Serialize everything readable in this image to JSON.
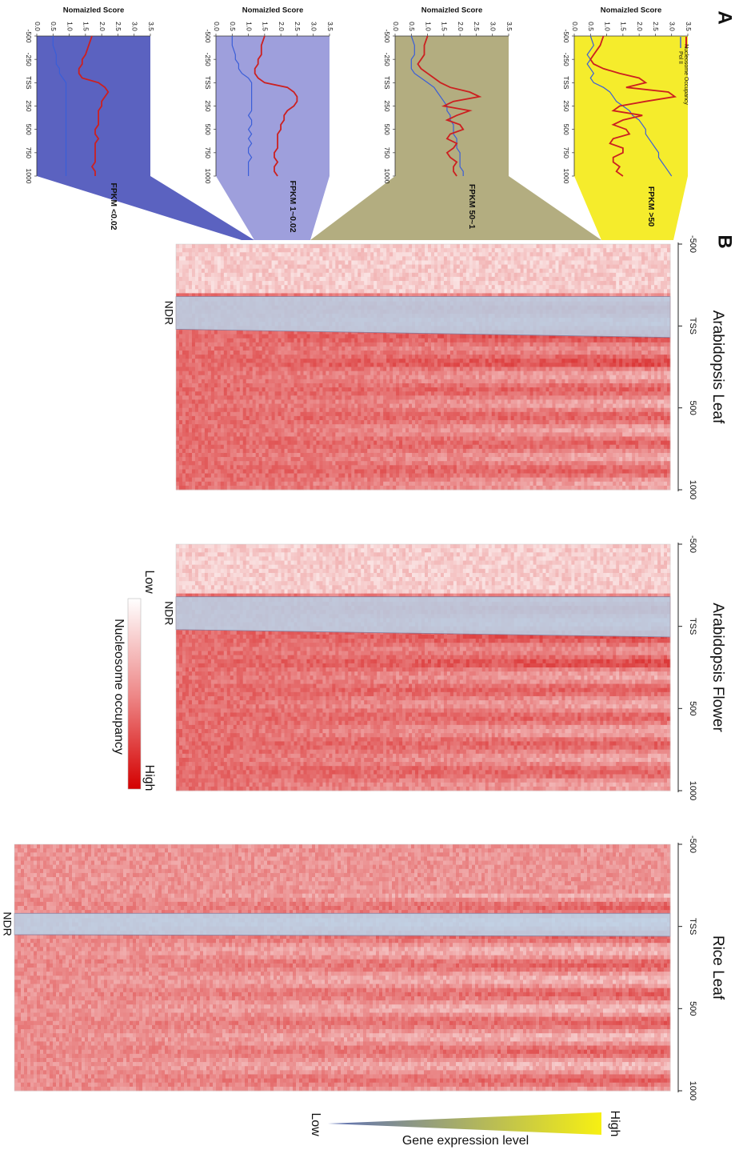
{
  "panel_labels": {
    "a": "A",
    "b": "B"
  },
  "colors": {
    "heat_low": "#fcefef",
    "heat_high": "#d81818",
    "ndr_fill": "#b9d3ea",
    "nucleosome_line": "#cc2020",
    "polii_line": "#3a5ed8",
    "panel_backgrounds": [
      "#f5ec2c",
      "#b3ad80",
      "#9e9fdc",
      "#5b62c0"
    ]
  },
  "panel_a": {
    "xlabel": "Nomaizled Score",
    "xticks": [
      "0.0",
      "0.5",
      "1.0",
      "1.5",
      "2.0",
      "2.5",
      "3.0",
      "3.5"
    ],
    "yticks": [
      "-500",
      "-250",
      "TSS",
      "250",
      "500",
      "750",
      "1000"
    ],
    "legend": [
      "Nucleosome Occupancy",
      "Pol II"
    ]
  },
  "panel_b": {
    "xticks": [
      "-500",
      "TSS",
      "500",
      "1000"
    ],
    "ndr_label": "NDR",
    "colorbar": {
      "title": "Nucleosome occupancy",
      "low": "Low",
      "high": "High"
    },
    "expression": {
      "title": "Gene expression level",
      "low": "Low",
      "high": "High"
    }
  },
  "chart_data": [
    {
      "type": "line",
      "panel": "A",
      "xlabel": "Nomaizled Score",
      "xlim": [
        0,
        3.5
      ],
      "ylim": [
        -500,
        1000
      ],
      "legend": [
        "Nucleosome Occupancy",
        "Pol II"
      ],
      "subplots": [
        {
          "label": "FPKM >50",
          "position_bp": [
            -500,
            -400,
            -300,
            -250,
            -200,
            -150,
            -100,
            -50,
            0,
            50,
            100,
            150,
            200,
            250,
            300,
            350,
            400,
            450,
            500,
            550,
            600,
            650,
            700,
            750,
            800,
            850,
            900,
            950,
            1000
          ],
          "nucleosome": [
            0.9,
            0.8,
            0.6,
            0.5,
            0.6,
            0.9,
            1.4,
            2.0,
            2.2,
            1.6,
            2.9,
            3.1,
            2.2,
            1.4,
            1.2,
            2.1,
            1.5,
            1.2,
            1.6,
            1.7,
            1.2,
            1.1,
            1.5,
            1.5,
            1.2,
            1.2,
            1.4,
            1.3,
            1.5
          ],
          "polii": [
            0.5,
            0.6,
            0.4,
            0.5,
            0.4,
            0.5,
            0.6,
            0.5,
            0.6,
            0.9,
            1.1,
            1.2,
            1.3,
            1.5,
            1.7,
            1.8,
            2.0,
            2.1,
            2.2,
            2.2,
            2.3,
            2.4,
            2.5,
            2.6,
            2.6,
            2.7,
            2.8,
            2.9,
            3.0
          ]
        },
        {
          "label": "FPKM 50~1",
          "position_bp": [
            -500,
            -400,
            -300,
            -250,
            -200,
            -150,
            -100,
            -50,
            0,
            50,
            100,
            150,
            200,
            250,
            300,
            350,
            400,
            450,
            500,
            550,
            600,
            650,
            700,
            750,
            800,
            850,
            900,
            950,
            1000
          ],
          "nucleosome": [
            1.0,
            0.9,
            0.9,
            0.8,
            0.7,
            0.8,
            1.0,
            1.2,
            1.4,
            1.7,
            2.3,
            2.6,
            1.8,
            1.5,
            2.3,
            1.9,
            1.6,
            2.0,
            2.1,
            1.7,
            1.6,
            1.9,
            1.8,
            1.6,
            1.7,
            1.9,
            1.8,
            1.8,
            1.9
          ],
          "polii": [
            0.5,
            0.6,
            0.6,
            0.5,
            0.5,
            0.5,
            0.6,
            0.8,
            1.0,
            1.2,
            1.3,
            1.4,
            1.5,
            1.6,
            1.6,
            1.7,
            1.7,
            1.8,
            1.8,
            1.8,
            1.9,
            1.9,
            1.9,
            2.0,
            2.0,
            2.0,
            2.0,
            2.1,
            2.1
          ]
        },
        {
          "label": "FPKM 1~0.02",
          "position_bp": [
            -500,
            -400,
            -300,
            -250,
            -200,
            -150,
            -100,
            -50,
            0,
            50,
            100,
            150,
            200,
            250,
            300,
            350,
            400,
            450,
            500,
            550,
            600,
            650,
            700,
            750,
            800,
            850,
            900,
            950,
            1000
          ],
          "nucleosome": [
            1.5,
            1.4,
            1.4,
            1.3,
            1.3,
            1.2,
            1.2,
            1.3,
            1.5,
            2.2,
            2.4,
            2.5,
            2.5,
            2.4,
            2.2,
            2.1,
            2.1,
            2.0,
            2.0,
            1.9,
            1.9,
            1.9,
            1.9,
            1.8,
            1.8,
            1.9,
            1.8,
            1.8,
            1.9
          ],
          "polii": [
            0.5,
            0.5,
            0.6,
            0.6,
            0.7,
            0.7,
            0.8,
            1.0,
            1.1,
            1.1,
            1.1,
            1.1,
            1.1,
            1.1,
            1.1,
            1.0,
            1.1,
            1.1,
            1.0,
            1.1,
            1.0,
            1.1,
            1.0,
            1.0,
            1.1,
            1.0,
            1.0,
            1.0,
            1.0
          ]
        },
        {
          "label": "FPKM <0.02",
          "position_bp": [
            -500,
            -400,
            -300,
            -250,
            -200,
            -150,
            -100,
            -50,
            0,
            50,
            100,
            150,
            200,
            250,
            300,
            350,
            400,
            450,
            500,
            550,
            600,
            650,
            700,
            750,
            800,
            850,
            900,
            950,
            1000
          ],
          "nucleosome": [
            1.7,
            1.6,
            1.5,
            1.4,
            1.4,
            1.3,
            1.3,
            1.4,
            1.9,
            2.1,
            2.2,
            2.1,
            2.0,
            2.0,
            1.9,
            1.9,
            1.9,
            1.9,
            1.8,
            1.8,
            1.9,
            1.8,
            1.8,
            1.8,
            1.8,
            1.8,
            1.7,
            1.8,
            1.8
          ],
          "polii": [
            0.5,
            0.5,
            0.6,
            0.6,
            0.6,
            0.7,
            0.7,
            0.8,
            0.9,
            0.9,
            0.9,
            0.9,
            0.9,
            0.9,
            0.9,
            0.9,
            0.9,
            0.9,
            0.9,
            0.9,
            0.9,
            0.9,
            0.9,
            0.9,
            0.9,
            0.9,
            0.9,
            0.9,
            0.9
          ]
        }
      ]
    },
    {
      "type": "heatmap",
      "panel": "B",
      "xlim": [
        -500,
        1000
      ],
      "xticks": [
        "-500",
        "TSS",
        "500",
        "1000"
      ],
      "colorbar": {
        "title": "Nucleosome occupancy",
        "low": "Low",
        "high": "High"
      },
      "row_order": "genes sorted by expression, High at top to Low at bottom",
      "heatmaps": [
        {
          "title": "Arabidopsis Leaf",
          "ndr_label": "NDR",
          "ndr_start_bp": -180,
          "ndr_end_top_bp": 70,
          "ndr_end_bottom_bp": 20,
          "phasing_period_bp": 165
        },
        {
          "title": "Arabidopsis Flower",
          "ndr_label": "NDR",
          "ndr_start_bp": -180,
          "ndr_end_top_bp": 65,
          "ndr_end_bottom_bp": 20,
          "phasing_period_bp": 165
        },
        {
          "title": "Rice Leaf",
          "ndr_label": "NDR",
          "ndr_start_bp": -80,
          "ndr_end_top_bp": 60,
          "ndr_end_bottom_bp": 50,
          "phasing_period_bp": 175
        }
      ]
    }
  ]
}
